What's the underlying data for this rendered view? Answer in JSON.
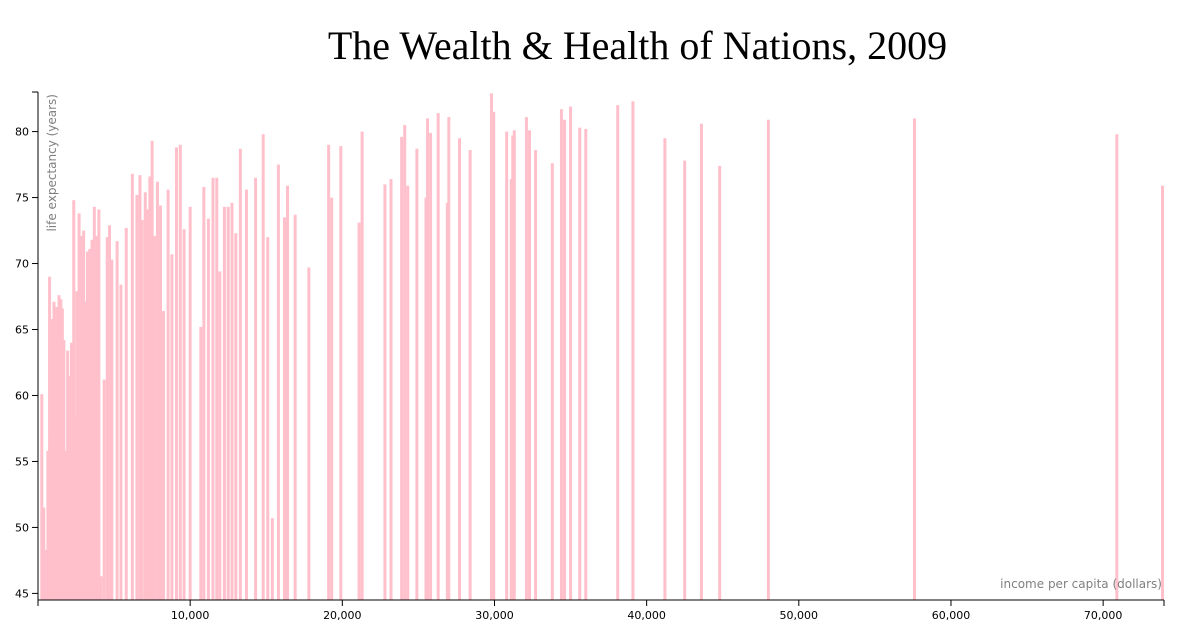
{
  "chart_data": {
    "type": "bar",
    "title": "The Wealth & Health of Nations, 2009",
    "xlabel": "income per capita (dollars)",
    "ylabel": "life expectancy (years)",
    "xlim": [
      0,
      74000
    ],
    "ylim": [
      44.5,
      83
    ],
    "x_ticks": [
      10000,
      20000,
      30000,
      40000,
      50000,
      60000,
      70000
    ],
    "x_tick_labels": [
      "10,000",
      "20,000",
      "30,000",
      "40,000",
      "50,000",
      "60,000",
      "70,000"
    ],
    "y_ticks": [
      45,
      50,
      55,
      60,
      65,
      70,
      75,
      80
    ],
    "y_tick_labels": [
      "45",
      "50",
      "55",
      "60",
      "65",
      "70",
      "75",
      "80"
    ],
    "bar_color": "#ffc0cb",
    "points": [
      {
        "x": 250,
        "y": 60.1
      },
      {
        "x": 380,
        "y": 51.5
      },
      {
        "x": 520,
        "y": 48.3
      },
      {
        "x": 650,
        "y": 55.8
      },
      {
        "x": 760,
        "y": 69.0
      },
      {
        "x": 860,
        "y": 62.5
      },
      {
        "x": 950,
        "y": 65.8
      },
      {
        "x": 1050,
        "y": 67.1
      },
      {
        "x": 1150,
        "y": 57.0
      },
      {
        "x": 1250,
        "y": 66.7
      },
      {
        "x": 1380,
        "y": 67.6
      },
      {
        "x": 1500,
        "y": 67.3
      },
      {
        "x": 1600,
        "y": 66.6
      },
      {
        "x": 1700,
        "y": 64.2
      },
      {
        "x": 1850,
        "y": 55.8
      },
      {
        "x": 1950,
        "y": 63.4
      },
      {
        "x": 2050,
        "y": 61.5
      },
      {
        "x": 2200,
        "y": 64.0
      },
      {
        "x": 2350,
        "y": 74.8
      },
      {
        "x": 2450,
        "y": 58.5
      },
      {
        "x": 2550,
        "y": 67.9
      },
      {
        "x": 2700,
        "y": 73.8
      },
      {
        "x": 2850,
        "y": 72.1
      },
      {
        "x": 3000,
        "y": 72.5
      },
      {
        "x": 3150,
        "y": 67.1
      },
      {
        "x": 3250,
        "y": 70.9
      },
      {
        "x": 3400,
        "y": 71.1
      },
      {
        "x": 3550,
        "y": 71.8
      },
      {
        "x": 3700,
        "y": 74.3
      },
      {
        "x": 3850,
        "y": 72.1
      },
      {
        "x": 4000,
        "y": 74.1
      },
      {
        "x": 4150,
        "y": 46.3
      },
      {
        "x": 4350,
        "y": 61.2
      },
      {
        "x": 4550,
        "y": 72.0
      },
      {
        "x": 4700,
        "y": 72.9
      },
      {
        "x": 4850,
        "y": 70.3
      },
      {
        "x": 5200,
        "y": 71.7
      },
      {
        "x": 5450,
        "y": 68.4
      },
      {
        "x": 5800,
        "y": 72.7
      },
      {
        "x": 6200,
        "y": 76.8
      },
      {
        "x": 6500,
        "y": 75.2
      },
      {
        "x": 6700,
        "y": 76.7
      },
      {
        "x": 6850,
        "y": 73.3
      },
      {
        "x": 7050,
        "y": 75.4
      },
      {
        "x": 7200,
        "y": 74.1
      },
      {
        "x": 7350,
        "y": 76.6
      },
      {
        "x": 7500,
        "y": 79.3
      },
      {
        "x": 7650,
        "y": 72.1
      },
      {
        "x": 7850,
        "y": 76.2
      },
      {
        "x": 8050,
        "y": 74.4
      },
      {
        "x": 8250,
        "y": 66.4
      },
      {
        "x": 8550,
        "y": 75.6
      },
      {
        "x": 8800,
        "y": 70.7
      },
      {
        "x": 9100,
        "y": 78.8
      },
      {
        "x": 9350,
        "y": 79.0
      },
      {
        "x": 9600,
        "y": 72.6
      },
      {
        "x": 10000,
        "y": 74.3
      },
      {
        "x": 10700,
        "y": 65.2
      },
      {
        "x": 10900,
        "y": 75.8
      },
      {
        "x": 11200,
        "y": 73.4
      },
      {
        "x": 11500,
        "y": 76.5
      },
      {
        "x": 11750,
        "y": 76.5
      },
      {
        "x": 11950,
        "y": 69.4
      },
      {
        "x": 12250,
        "y": 74.3
      },
      {
        "x": 12500,
        "y": 74.3
      },
      {
        "x": 12750,
        "y": 74.6
      },
      {
        "x": 13000,
        "y": 72.3
      },
      {
        "x": 13300,
        "y": 78.7
      },
      {
        "x": 13700,
        "y": 75.6
      },
      {
        "x": 14300,
        "y": 76.5
      },
      {
        "x": 14800,
        "y": 79.8
      },
      {
        "x": 15100,
        "y": 72.0
      },
      {
        "x": 15400,
        "y": 50.7
      },
      {
        "x": 15800,
        "y": 77.5
      },
      {
        "x": 16200,
        "y": 73.5
      },
      {
        "x": 16400,
        "y": 75.9
      },
      {
        "x": 16900,
        "y": 73.7
      },
      {
        "x": 17800,
        "y": 69.7
      },
      {
        "x": 19100,
        "y": 79.0
      },
      {
        "x": 19300,
        "y": 75.0
      },
      {
        "x": 19900,
        "y": 78.9
      },
      {
        "x": 21100,
        "y": 73.1
      },
      {
        "x": 21300,
        "y": 80.0
      },
      {
        "x": 22800,
        "y": 76.0
      },
      {
        "x": 23200,
        "y": 76.4
      },
      {
        "x": 23900,
        "y": 79.6
      },
      {
        "x": 24100,
        "y": 80.5
      },
      {
        "x": 24300,
        "y": 75.9
      },
      {
        "x": 24900,
        "y": 78.7
      },
      {
        "x": 25500,
        "y": 75.0
      },
      {
        "x": 25600,
        "y": 81.0
      },
      {
        "x": 25800,
        "y": 79.9
      },
      {
        "x": 26300,
        "y": 81.4
      },
      {
        "x": 26900,
        "y": 74.6
      },
      {
        "x": 27000,
        "y": 81.1
      },
      {
        "x": 27700,
        "y": 79.5
      },
      {
        "x": 28400,
        "y": 78.6
      },
      {
        "x": 29800,
        "y": 82.9
      },
      {
        "x": 29950,
        "y": 81.5
      },
      {
        "x": 30800,
        "y": 80.0
      },
      {
        "x": 31100,
        "y": 76.4
      },
      {
        "x": 31200,
        "y": 79.7
      },
      {
        "x": 31300,
        "y": 80.1
      },
      {
        "x": 32100,
        "y": 81.1
      },
      {
        "x": 32300,
        "y": 80.1
      },
      {
        "x": 32700,
        "y": 78.6
      },
      {
        "x": 33800,
        "y": 77.6
      },
      {
        "x": 34400,
        "y": 81.7
      },
      {
        "x": 34600,
        "y": 80.9
      },
      {
        "x": 35000,
        "y": 81.9
      },
      {
        "x": 35600,
        "y": 80.3
      },
      {
        "x": 36000,
        "y": 80.2
      },
      {
        "x": 38100,
        "y": 82.0
      },
      {
        "x": 39100,
        "y": 82.3
      },
      {
        "x": 41200,
        "y": 79.5
      },
      {
        "x": 42500,
        "y": 77.8
      },
      {
        "x": 43600,
        "y": 80.6
      },
      {
        "x": 44800,
        "y": 77.4
      },
      {
        "x": 48000,
        "y": 80.9
      },
      {
        "x": 57600,
        "y": 81.0
      },
      {
        "x": 70900,
        "y": 79.8
      },
      {
        "x": 74000,
        "y": 75.9
      }
    ]
  }
}
